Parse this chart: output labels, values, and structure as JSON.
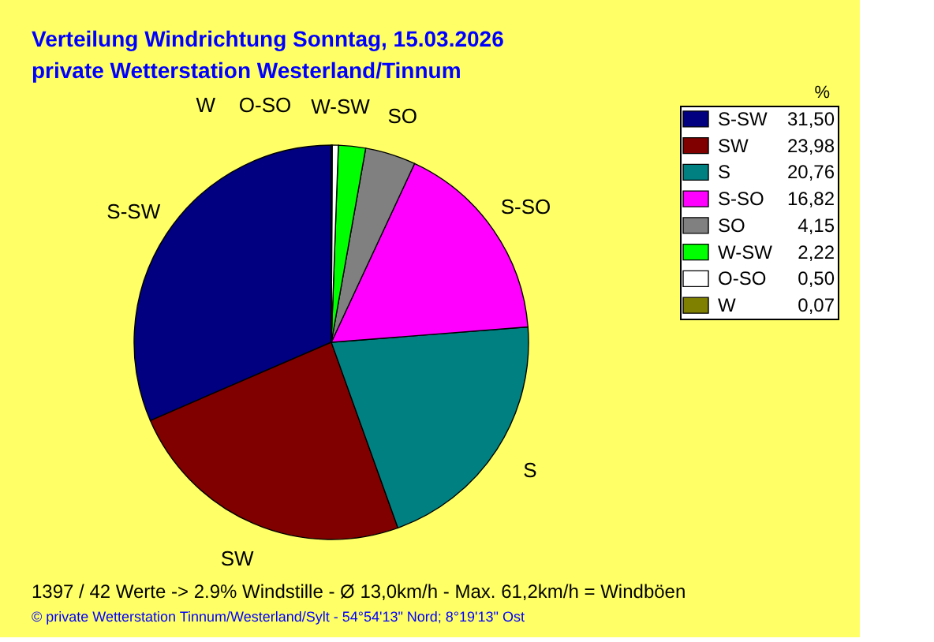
{
  "chart_data": {
    "type": "pie",
    "title": "Verteilung Windrichtung   Sonntag, 15.03.2026",
    "subtitle": "private Wetterstation Westerland/Tinnum",
    "categories": [
      "S-SW",
      "SW",
      "S",
      "S-SO",
      "SO",
      "W-SW",
      "O-SO",
      "W"
    ],
    "values": [
      31.5,
      23.98,
      20.76,
      16.82,
      4.15,
      2.22,
      0.5,
      0.07
    ],
    "value_labels": [
      "31,50",
      "23,98",
      "20,76",
      "16,82",
      "4,15",
      "2,22",
      "0,50",
      "0,07"
    ],
    "colors": [
      "#000080",
      "#800000",
      "#008080",
      "#ff00ff",
      "#808080",
      "#00ff00",
      "#ffffff",
      "#808000"
    ],
    "legend_title": "%",
    "legend": "right",
    "annotations": [
      "1397 / 42 Werte  -> 2.9% Windstille   -   Ø 13,0km/h  -  Max. 61,2km/h = Windböen",
      "© private Wetterstation Tinnum/Westerland/Sylt   -   54°54'13\" Nord; 8°19'13\" Ost"
    ]
  }
}
